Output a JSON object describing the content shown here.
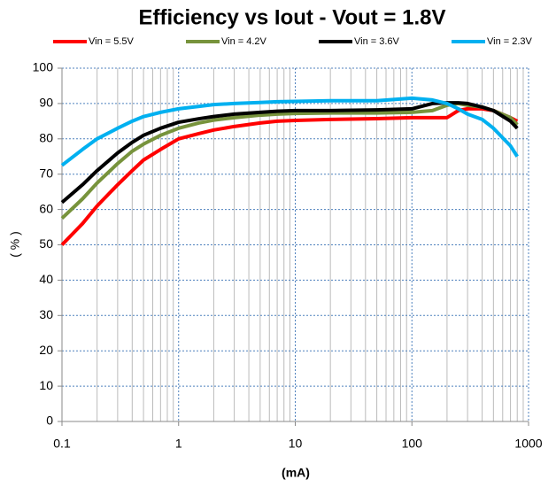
{
  "chart_data": {
    "type": "line",
    "title": "Efficiency vs Iout - Vout = 1.8V",
    "xlabel": "(mA)",
    "ylabel": "( % )",
    "x": [
      0.1,
      0.15,
      0.2,
      0.3,
      0.4,
      0.5,
      0.7,
      1,
      1.5,
      2,
      3,
      5,
      7,
      10,
      20,
      50,
      100,
      150,
      200,
      250,
      300,
      400,
      500,
      700,
      800
    ],
    "series": [
      {
        "name": "Vin = 5.5V",
        "color": "#ff0000",
        "values": [
          50,
          56,
          61,
          67,
          71,
          74,
          77,
          80,
          81.5,
          82.5,
          83.5,
          84.5,
          85,
          85.2,
          85.5,
          85.7,
          86,
          86,
          86,
          88,
          88.5,
          88.5,
          88,
          86,
          85
        ]
      },
      {
        "name": "Vin = 4.2V",
        "color": "#77933c",
        "values": [
          57.5,
          63,
          67.5,
          73,
          76.5,
          78.5,
          81,
          83,
          84.5,
          85.3,
          86,
          86.7,
          87,
          87.2,
          87.3,
          87.3,
          87.5,
          88,
          89.5,
          90,
          89.5,
          89,
          88,
          86,
          84
        ]
      },
      {
        "name": "Vin = 3.6V",
        "color": "#000000",
        "values": [
          62,
          67,
          71,
          76,
          79,
          81,
          83,
          84.7,
          85.7,
          86.3,
          87,
          87.5,
          87.8,
          88,
          88,
          88.2,
          88.5,
          90,
          90.2,
          90.2,
          90,
          89,
          88,
          85,
          83
        ]
      },
      {
        "name": "Vin = 2.3V",
        "color": "#00b0f0",
        "values": [
          72.5,
          77,
          80,
          83,
          85,
          86.3,
          87.5,
          88.5,
          89.2,
          89.7,
          90,
          90.3,
          90.5,
          90.6,
          90.8,
          90.8,
          91.5,
          91,
          90,
          88.5,
          87,
          85.5,
          83,
          78,
          75
        ]
      }
    ],
    "xscale": "log",
    "xlim": [
      0.1,
      1000
    ],
    "xticks": [
      0.1,
      1,
      10,
      100,
      1000
    ],
    "ylim": [
      0,
      100
    ],
    "yticks": [
      0,
      10,
      20,
      30,
      40,
      50,
      60,
      70,
      80,
      90,
      100
    ],
    "grid": true,
    "minor_grid": true,
    "legend": "top"
  }
}
